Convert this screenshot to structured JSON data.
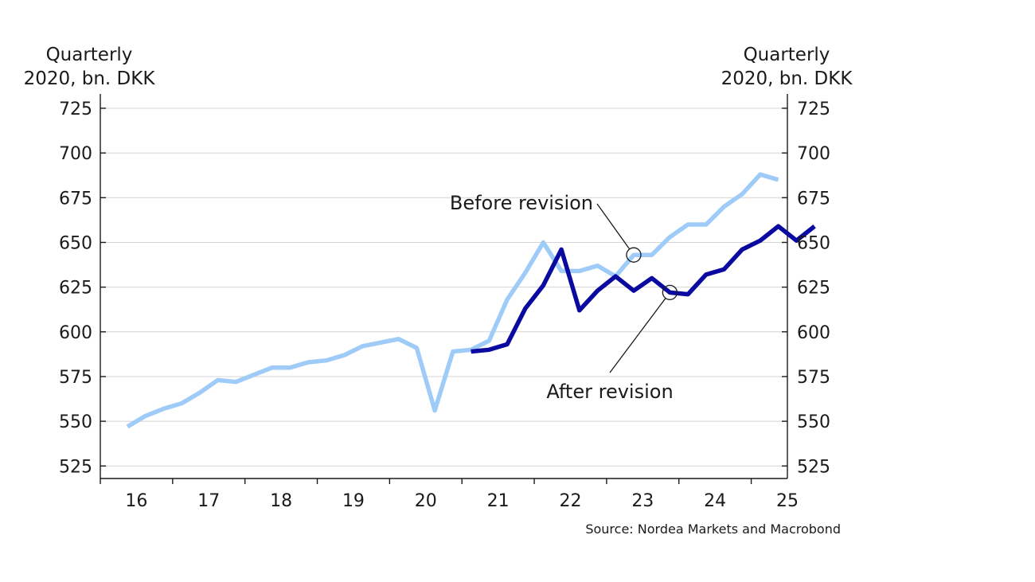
{
  "chart_data": {
    "type": "line",
    "ylabel_left": [
      "Quarterly",
      "2020, bn. DKK"
    ],
    "ylabel_right": [
      "Quarterly",
      "2020, bn. DKK"
    ],
    "ylim": [
      518,
      733
    ],
    "yticks": [
      525,
      550,
      575,
      600,
      625,
      650,
      675,
      700,
      725
    ],
    "xticks": [
      "16",
      "17",
      "18",
      "19",
      "20",
      "21",
      "22",
      "23",
      "24",
      "25"
    ],
    "grid": true,
    "series": [
      {
        "name": "Before revision",
        "color": "#9ecbf7",
        "start_quarter_index": 1,
        "values": [
          547,
          553,
          557,
          560,
          566,
          573,
          572,
          576,
          580,
          580,
          583,
          584,
          587,
          592,
          594,
          596,
          591,
          556,
          589,
          590,
          595,
          618,
          633,
          650,
          634,
          634,
          637,
          631,
          643,
          643,
          653,
          660,
          660,
          670,
          677,
          688,
          685
        ]
      },
      {
        "name": "After revision",
        "color": "#0a0aa0",
        "start_quarter_index": 20,
        "values": [
          589,
          590,
          593,
          613,
          626,
          646,
          612,
          623,
          631,
          623,
          630,
          622,
          621,
          632,
          635,
          646,
          651,
          659,
          651,
          659
        ]
      }
    ],
    "annotations": [
      {
        "text": "Before revision",
        "series": 0,
        "quarter_index": 29
      },
      {
        "text": "After revision",
        "series": 1,
        "quarter_index": 31
      }
    ],
    "source": "Source: Nordea Markets and Macrobond"
  }
}
